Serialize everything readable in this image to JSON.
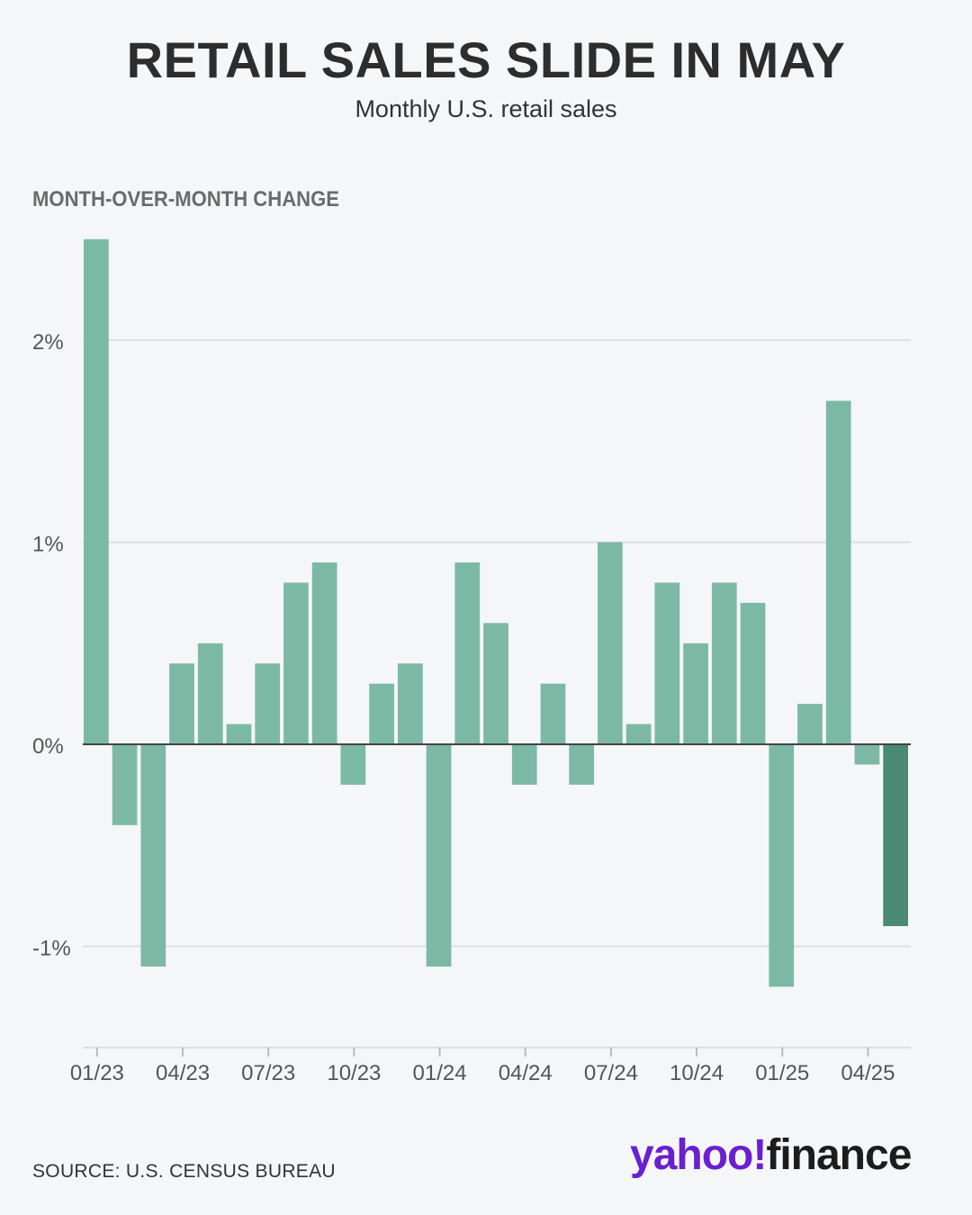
{
  "header": {
    "title": "RETAIL SALES SLIDE IN MAY",
    "subtitle": "Monthly U.S. retail sales"
  },
  "footer": {
    "source": "SOURCE: U.S. CENSUS BUREAU",
    "logo_left": "yahoo",
    "logo_mark": "!",
    "logo_right": "finance"
  },
  "colors": {
    "bar": "#7cb9a5",
    "highlight": "#4a8a75",
    "grid": "#dcdfe2",
    "zero": "#444444",
    "logo_purple": "#6a1fd0"
  },
  "chart_data": {
    "type": "bar",
    "ylabel": "MONTH-OVER-MONTH CHANGE",
    "ylim": [
      -1.5,
      2.5
    ],
    "yticks": [
      {
        "value": 2,
        "label": "2%"
      },
      {
        "value": 1,
        "label": "1%"
      },
      {
        "value": 0,
        "label": "0%"
      },
      {
        "value": -1,
        "label": "-1%"
      }
    ],
    "xtick_labels": [
      "01/23",
      "04/23",
      "07/23",
      "10/23",
      "01/24",
      "04/24",
      "07/24",
      "10/24",
      "01/25",
      "04/25"
    ],
    "xtick_every": 3,
    "grid": true,
    "highlight_last": true,
    "values": [
      2.5,
      -0.4,
      -1.1,
      0.4,
      0.5,
      0.1,
      0.4,
      0.8,
      0.9,
      -0.2,
      0.3,
      0.4,
      -1.1,
      0.9,
      0.6,
      -0.2,
      0.3,
      -0.2,
      1.0,
      0.1,
      0.8,
      0.5,
      0.8,
      0.7,
      -1.2,
      0.2,
      1.7,
      -0.1,
      -0.9
    ]
  }
}
